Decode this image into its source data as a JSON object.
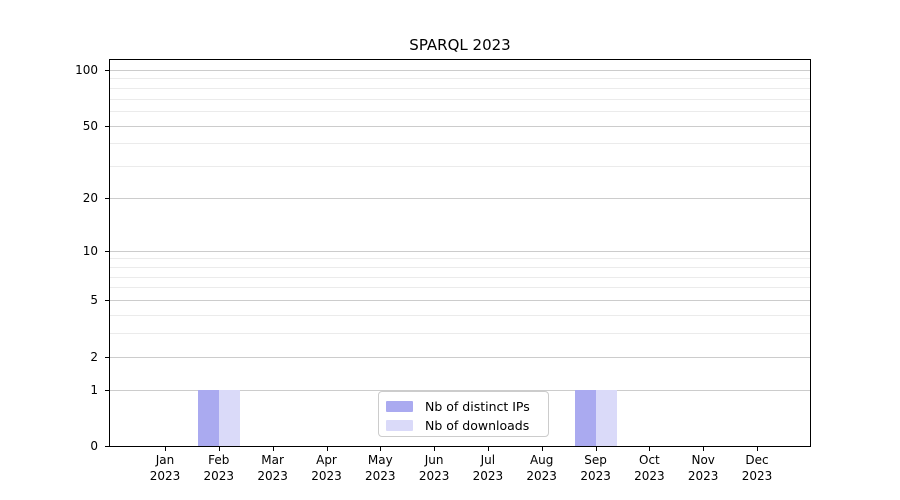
{
  "chart_data": {
    "type": "bar",
    "title": "SPARQL 2023",
    "categories": [
      "Jan",
      "Feb",
      "Mar",
      "Apr",
      "May",
      "Jun",
      "Jul",
      "Aug",
      "Sep",
      "Oct",
      "Nov",
      "Dec"
    ],
    "year_label": "2023",
    "series": [
      {
        "name": "Nb of distinct IPs",
        "color": "#aaaaf0",
        "values": [
          0,
          1,
          0,
          0,
          0,
          0,
          0,
          0,
          1,
          0,
          0,
          0
        ]
      },
      {
        "name": "Nb of downloads",
        "color": "#dadaf9",
        "values": [
          0,
          1,
          0,
          0,
          0,
          0,
          0,
          0,
          1,
          0,
          0,
          0
        ]
      }
    ],
    "y_scale": "log1p",
    "y_major_ticks": [
      0,
      1,
      2,
      5,
      10,
      20,
      50,
      100
    ],
    "y_minor_ticks": [
      3,
      4,
      6,
      7,
      8,
      9,
      30,
      40,
      60,
      70,
      80,
      90
    ],
    "ylim": [
      0,
      113
    ],
    "grid": "horizontal major+minor",
    "legend_position": "inside-bottom-center"
  },
  "colors": {
    "background": "#ffffff",
    "spine": "#000000",
    "grid_major": "#cccccc",
    "grid_minor": "#ebebeb",
    "text": "#000000",
    "legend_border": "#cccccc",
    "legend_bg": "#ffffff"
  }
}
